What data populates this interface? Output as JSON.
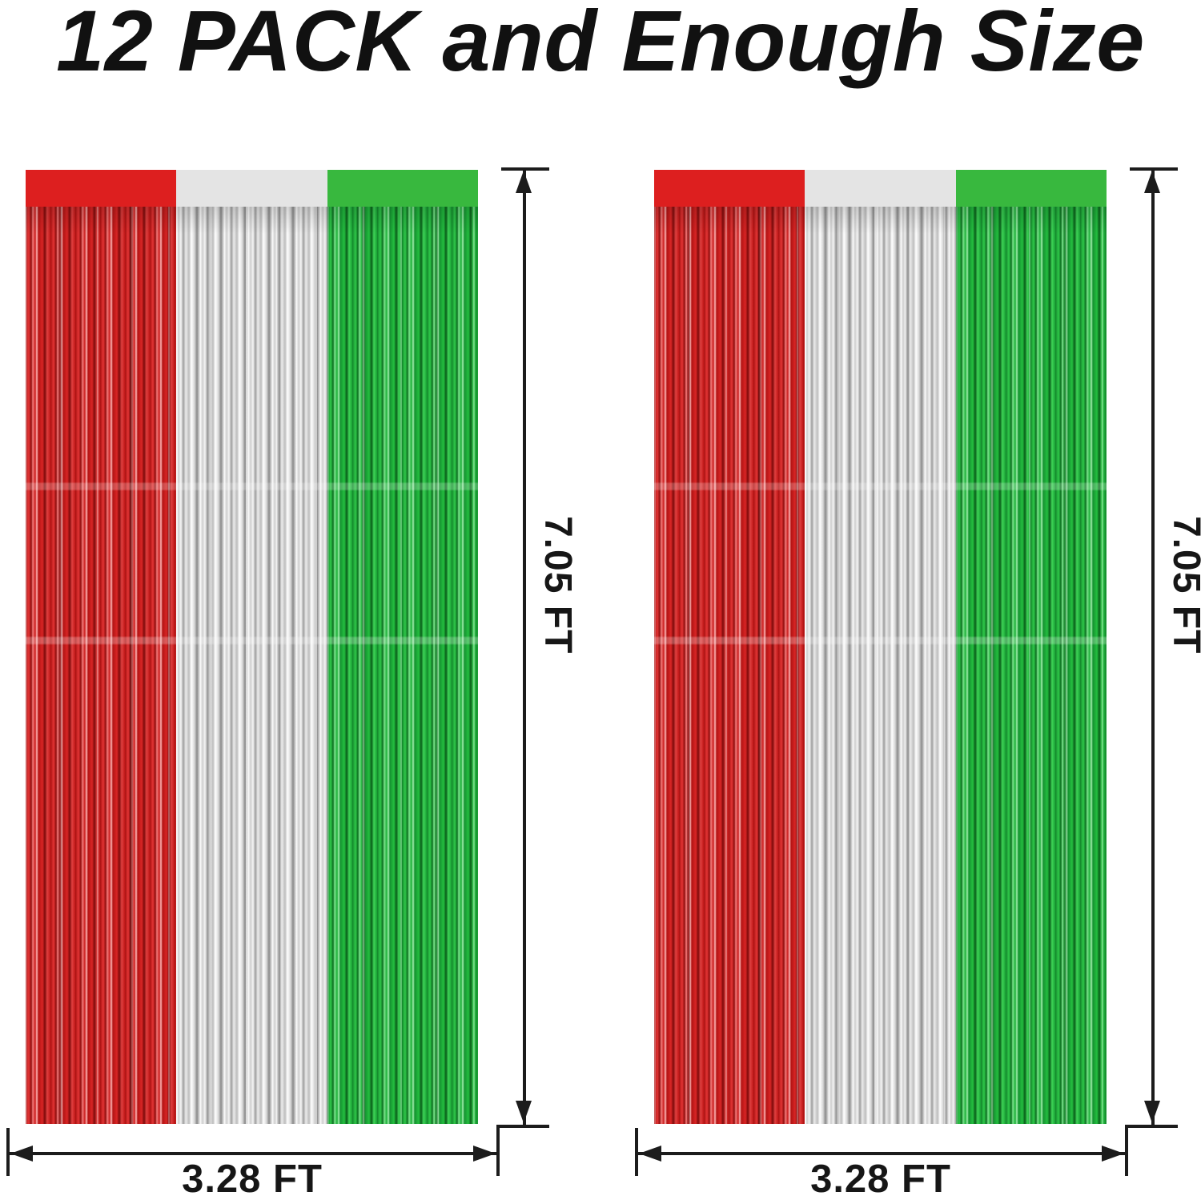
{
  "title": "12 PACK and Enough Size",
  "panels": [
    {
      "height_label": "7.05 FT",
      "width_label": "3.28 FT"
    },
    {
      "height_label": "7.05 FT",
      "width_label": "3.28 FT"
    }
  ],
  "colors": {
    "band_red": "#dd1f1f",
    "band_white": "#e4e4e4",
    "band_green": "#38b83e",
    "fringe_red": "#c81b1b",
    "fringe_silver": "#e0e0e0",
    "fringe_green": "#1cae38",
    "line_color": "#1c1c1c",
    "text_color": "#111111",
    "background": "#ffffff"
  }
}
